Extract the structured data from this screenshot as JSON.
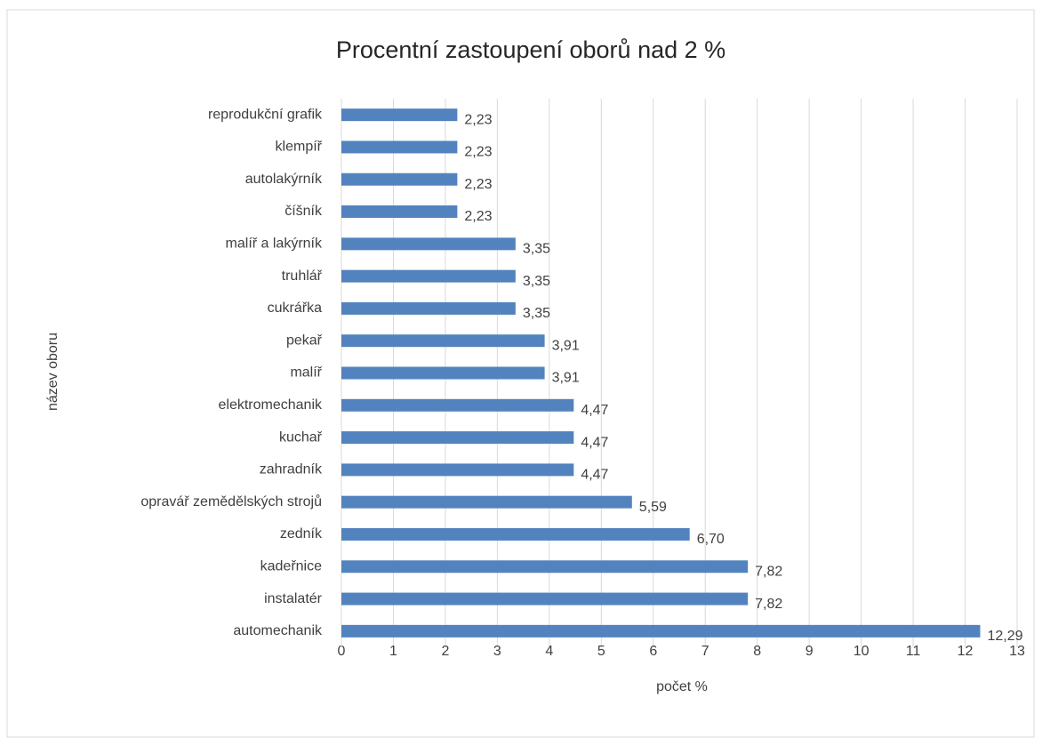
{
  "chart_data": {
    "type": "barh",
    "title": "Procentní zastoupení oborů nad 2 %",
    "xlabel": "počet %",
    "ylabel": "název oboru",
    "categories": [
      "reprodukční grafik",
      "klempíř",
      "autolakýrník",
      "číšník",
      "malíř a lakýrník",
      "truhlář",
      "cukrářka",
      "pekař",
      "malíř",
      "elektromechanik",
      "kuchař",
      "zahradník",
      "opravář zemědělských strojů",
      "zedník",
      "kadeřnice",
      "instalatér",
      "automechanik"
    ],
    "values": [
      2.23,
      2.23,
      2.23,
      2.23,
      3.35,
      3.35,
      3.35,
      3.91,
      3.91,
      4.47,
      4.47,
      4.47,
      5.59,
      6.7,
      7.82,
      7.82,
      12.29
    ],
    "value_labels": [
      "2,23",
      "2,23",
      "2,23",
      "2,23",
      "3,35",
      "3,35",
      "3,35",
      "3,91",
      "3,91",
      "4,47",
      "4,47",
      "4,47",
      "5,59",
      "6,70",
      "7,82",
      "7,82",
      "12,29"
    ],
    "color": "#5283bf",
    "xlim": [
      0,
      13
    ],
    "xticks": [
      0,
      1,
      2,
      3,
      4,
      5,
      6,
      7,
      8,
      9,
      10,
      11,
      12,
      13
    ],
    "grid": true
  }
}
